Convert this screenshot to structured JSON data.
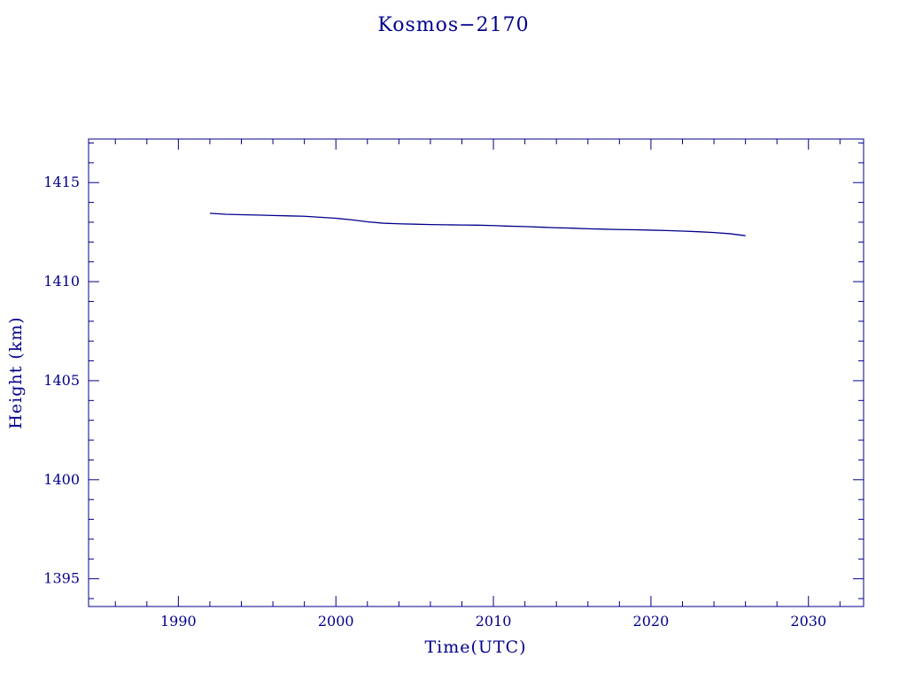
{
  "page": {
    "background_color": "#ffffff",
    "accent_color": "#00008B"
  },
  "chart_data": {
    "type": "line",
    "title": "Kosmos−2170",
    "xlabel": "Time(UTC)",
    "ylabel": "Height (km)",
    "xlim": [
      1984.3,
      2033.5
    ],
    "ylim": [
      1393.6,
      1417.2
    ],
    "xticks": [
      1990,
      2000,
      2010,
      2020,
      2030
    ],
    "yticks": [
      1395,
      1400,
      1405,
      1410,
      1415
    ],
    "x_minor_step": 2,
    "y_minor_step": 1,
    "grid": false,
    "legend": "none",
    "line_color": "#00008B",
    "frame_color": "#00008B",
    "series": [
      {
        "name": "height",
        "x": [
          1992,
          1993,
          1994,
          1995,
          1996,
          1997,
          1998,
          1999,
          2000,
          2001,
          2002,
          2003,
          2004,
          2005,
          2006,
          2007,
          2008,
          2009,
          2010,
          2011,
          2012,
          2013,
          2014,
          2015,
          2016,
          2017,
          2018,
          2019,
          2020,
          2021,
          2022,
          2023,
          2024,
          2025,
          2026
        ],
        "y": [
          1413.45,
          1413.4,
          1413.38,
          1413.36,
          1413.34,
          1413.32,
          1413.3,
          1413.25,
          1413.2,
          1413.12,
          1413.02,
          1412.95,
          1412.92,
          1412.9,
          1412.88,
          1412.87,
          1412.86,
          1412.85,
          1412.83,
          1412.8,
          1412.78,
          1412.75,
          1412.72,
          1412.7,
          1412.67,
          1412.65,
          1412.63,
          1412.62,
          1412.6,
          1412.58,
          1412.55,
          1412.52,
          1412.48,
          1412.42,
          1412.32
        ]
      }
    ]
  }
}
